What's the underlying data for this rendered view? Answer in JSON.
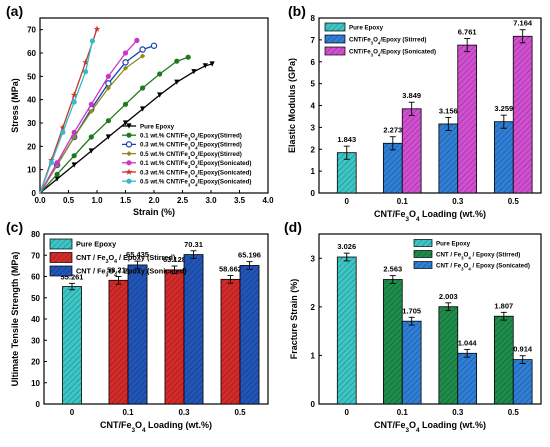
{
  "chart_data": [
    {
      "panel": "(a)",
      "type": "line",
      "xlabel": "Strain (%)",
      "ylabel": "Stress (MPa)",
      "xlim": [
        0,
        4.0
      ],
      "ylim": [
        0,
        75
      ],
      "xticks": [
        "0.0",
        "0.5",
        "1.0",
        "1.5",
        "2.0",
        "2.5",
        "3.0",
        "3.5",
        "4.0"
      ],
      "yticks": [
        "0",
        "10",
        "20",
        "30",
        "40",
        "50",
        "60",
        "70"
      ],
      "legend": "bottom-right",
      "series": [
        {
          "name": "Pure Epoxy",
          "color": "#000000",
          "marker": "triangle-down",
          "points": [
            [
              0,
              0
            ],
            [
              0.3,
              6
            ],
            [
              0.6,
              12
            ],
            [
              0.9,
              18
            ],
            [
              1.2,
              24
            ],
            [
              1.5,
              30
            ],
            [
              1.8,
              36
            ],
            [
              2.1,
              42
            ],
            [
              2.4,
              47.5
            ],
            [
              2.7,
              52
            ],
            [
              2.9,
              54.5
            ],
            [
              3.02,
              55.3
            ]
          ]
        },
        {
          "name": "0.1 wt.% CNT/Fe3O4/Epoxy(Stirred)",
          "color": "#1f7a1f",
          "marker": "circle",
          "points": [
            [
              0,
              0
            ],
            [
              0.3,
              8
            ],
            [
              0.6,
              16
            ],
            [
              0.9,
              24
            ],
            [
              1.2,
              31
            ],
            [
              1.5,
              38
            ],
            [
              1.8,
              45
            ],
            [
              2.1,
              51
            ],
            [
              2.4,
              56.5
            ],
            [
              2.6,
              58.2
            ]
          ]
        },
        {
          "name": "0.3 wt.% CNT/Fe3O4/Epoxy(Stirred)",
          "color": "#1a3fb5",
          "marker": "circle-open",
          "points": [
            [
              0,
              0
            ],
            [
              0.3,
              12
            ],
            [
              0.6,
              24
            ],
            [
              0.9,
              36
            ],
            [
              1.2,
              47
            ],
            [
              1.5,
              56
            ],
            [
              1.8,
              61.5
            ],
            [
              2.0,
              63.1
            ]
          ]
        },
        {
          "name": "0.5 wt.% CNT/Fe3O4/Epoxy(Stirred)",
          "color": "#8c8c1a",
          "marker": "diamond",
          "points": [
            [
              0,
              0
            ],
            [
              0.3,
              12
            ],
            [
              0.6,
              24
            ],
            [
              0.9,
              35
            ],
            [
              1.2,
              45
            ],
            [
              1.5,
              53.5
            ],
            [
              1.8,
              58.7
            ]
          ]
        },
        {
          "name": "0.1 wt.% CNT/Fe3O4/Epoxy(Sonicated)",
          "color": "#cc33cc",
          "marker": "circle",
          "points": [
            [
              0,
              0
            ],
            [
              0.3,
              13
            ],
            [
              0.6,
              26
            ],
            [
              0.9,
              38
            ],
            [
              1.2,
              50
            ],
            [
              1.5,
              60
            ],
            [
              1.7,
              65.4
            ]
          ]
        },
        {
          "name": "0.3 wt.% CNT/Fe3O4/Epoxy(Sonicated)",
          "color": "#c0392b",
          "marker": "star",
          "points": [
            [
              0,
              0
            ],
            [
              0.2,
              14
            ],
            [
              0.4,
              28
            ],
            [
              0.6,
              42
            ],
            [
              0.8,
              56
            ],
            [
              1.0,
              70.3
            ]
          ]
        },
        {
          "name": "0.5 wt.% CNT/Fe3O4/Epoxy(Sonicated)",
          "color": "#33bbcc",
          "marker": "circle",
          "points": [
            [
              0,
              0
            ],
            [
              0.2,
              13
            ],
            [
              0.4,
              26
            ],
            [
              0.6,
              39
            ],
            [
              0.8,
              52
            ],
            [
              0.92,
              65.2
            ]
          ]
        }
      ]
    },
    {
      "panel": "(b)",
      "type": "bar",
      "xlabel": "CNT/Fe3O4 Loading (wt.%)",
      "ylabel": "Elastic Modulus (GPa)",
      "ylim": [
        0,
        8
      ],
      "yticks": [
        "0",
        "1",
        "2",
        "3",
        "4",
        "5",
        "6",
        "7",
        "8"
      ],
      "categories": [
        "0",
        "0.1",
        "0.3",
        "0.5"
      ],
      "legend": "top-left",
      "series": [
        {
          "name": "Pure Epoxy",
          "color": "#3cc6c6",
          "hatch": "diag",
          "values": [
            1.843,
            null,
            null,
            null
          ],
          "errors": [
            0.3,
            null,
            null,
            null
          ]
        },
        {
          "name": "CNT/Fe3O4/Epoxy (Stirred)",
          "color": "#2f7fd6",
          "hatch": "diag",
          "values": [
            null,
            2.273,
            3.156,
            3.259
          ],
          "errors": [
            null,
            0.3,
            0.3,
            0.3
          ]
        },
        {
          "name": "CNT/Fe3O4/Epoxy (Sonicated)",
          "color": "#d24fd2",
          "hatch": "diag",
          "values": [
            null,
            3.849,
            6.761,
            7.164
          ],
          "errors": [
            null,
            0.3,
            0.3,
            0.3
          ]
        }
      ],
      "data_labels": [
        "1.843",
        "2.273",
        "3.849",
        "3.156",
        "6.761",
        "3.259",
        "7.164"
      ]
    },
    {
      "panel": "(c)",
      "type": "bar",
      "xlabel": "CNT/Fe3O4 Loading (wt.%)",
      "ylabel": "Ultimate Tensile Strength (MPa)",
      "ylim": [
        0,
        80
      ],
      "yticks": [
        "0",
        "10",
        "20",
        "30",
        "40",
        "50",
        "60",
        "70",
        "80"
      ],
      "categories": [
        "0",
        "0.1",
        "0.3",
        "0.5"
      ],
      "legend": "top-left",
      "series": [
        {
          "name": "Pure Epoxy",
          "color": "#3cc6c6",
          "hatch": "diag",
          "values": [
            55.261,
            null,
            null,
            null
          ],
          "errors": [
            1.5,
            null,
            null,
            null
          ]
        },
        {
          "name": "CNT / Fe3O4 / Epoxy (Stirred)",
          "color": "#d42a2a",
          "hatch": "diag",
          "values": [
            null,
            58.214,
            63.128,
            58.662
          ],
          "errors": [
            null,
            1.8,
            1.8,
            1.8
          ]
        },
        {
          "name": "CNT / Fe3O4 / Epoxy (Sonicated)",
          "color": "#2255b8",
          "hatch": "diag",
          "values": [
            null,
            65.435,
            70.31,
            65.196
          ],
          "errors": [
            null,
            1.8,
            1.8,
            1.8
          ]
        }
      ],
      "data_labels": [
        "55.261",
        "58.214",
        "65.435",
        "63.128",
        "70.31",
        "58.662",
        "65.196"
      ]
    },
    {
      "panel": "(d)",
      "type": "bar",
      "xlabel": "CNT/Fe3O4 Loading (wt.%)",
      "ylabel": "Fracture Strain (%)",
      "ylim": [
        0,
        3.5
      ],
      "yticks": [
        "0",
        "1",
        "2",
        "3"
      ],
      "categories": [
        "0",
        "0.1",
        "0.3",
        "0.5"
      ],
      "legend": "top-right",
      "series": [
        {
          "name": "Pure Epoxy",
          "color": "#3cc6c6",
          "hatch": "diag",
          "values": [
            3.026,
            null,
            null,
            null
          ],
          "errors": [
            0.08,
            null,
            null,
            null
          ]
        },
        {
          "name": "CNT / Fe3O4 / Epoxy (Stirred)",
          "color": "#1e8c4a",
          "hatch": "diag",
          "values": [
            null,
            2.563,
            2.003,
            1.807
          ],
          "errors": [
            null,
            0.08,
            0.08,
            0.08
          ]
        },
        {
          "name": "CNT / Fe3O4 / Epoxy (Sonicated)",
          "color": "#2f7fd6",
          "hatch": "diag",
          "values": [
            null,
            1.705,
            1.044,
            0.914
          ],
          "errors": [
            null,
            0.08,
            0.08,
            0.08
          ]
        }
      ],
      "data_labels": [
        "3.026",
        "2.563",
        "1.705",
        "2.003",
        "1.044",
        "1.807",
        "0.914"
      ]
    }
  ]
}
